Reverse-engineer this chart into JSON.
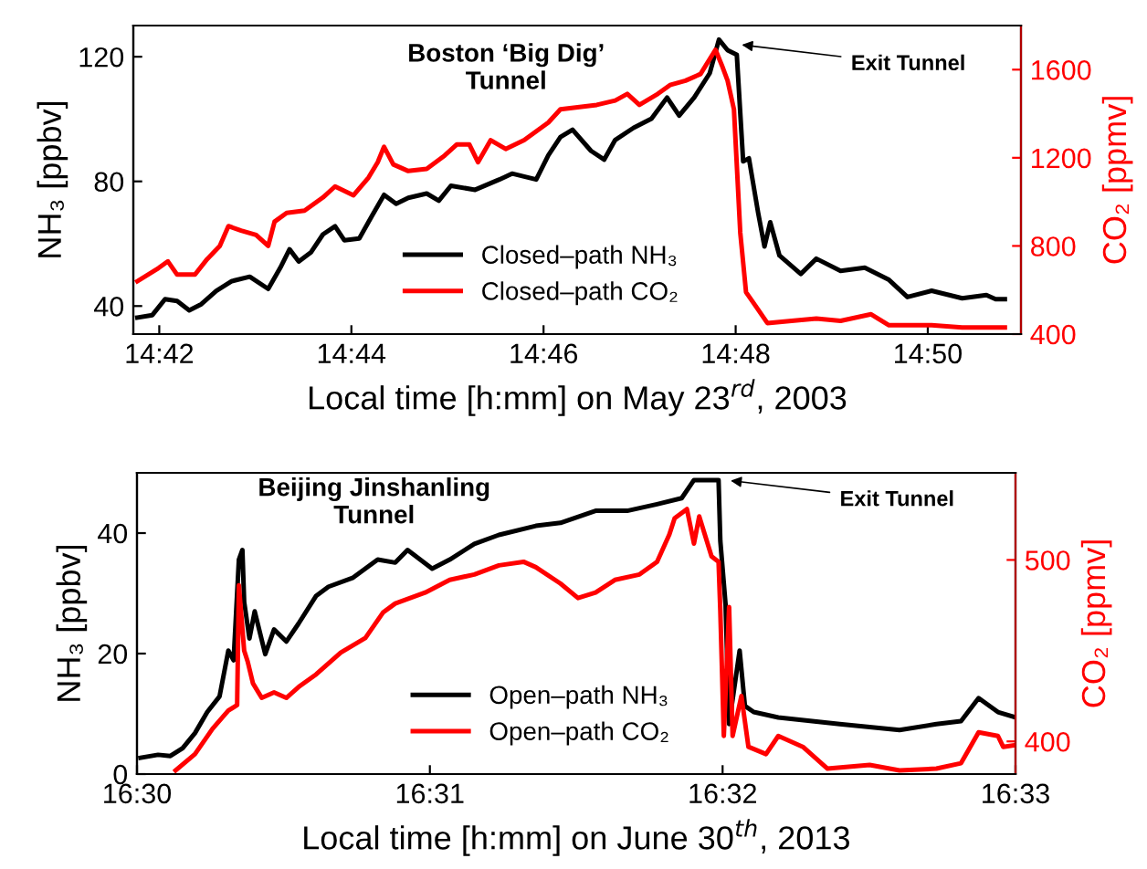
{
  "chart_data": [
    {
      "type": "line",
      "xlabel": "Local time [h:mm] on May 23$^{rd}$, 2003",
      "ylabel": "NH₃ [ppbv]",
      "y2label": "CO₂ [ppmv]",
      "xlim": [
        14.6955,
        14.8495
      ],
      "xticks": [
        {
          "value": 14.7,
          "label": "14:42"
        },
        {
          "value": 14.73333,
          "label": "14:44"
        },
        {
          "value": 14.76667,
          "label": "14:46"
        },
        {
          "value": 14.8,
          "label": "14:48"
        },
        {
          "value": 14.83333,
          "label": "14:50"
        }
      ],
      "ylim": [
        31,
        130
      ],
      "yticks": [
        40,
        80,
        120
      ],
      "y2lim": [
        400,
        1800
      ],
      "y2ticks": [
        400,
        800,
        1200,
        1600
      ],
      "legend": "bottom",
      "grid": false,
      "annotations": [
        "Boston ‘Big Dig’\nTunnel",
        {
          "text": "Exit Tunnel",
          "x": 14.8002,
          "y": 124
        }
      ],
      "series": [
        {
          "name": "Closed–path NH₃",
          "color": "#000000",
          "x": [
            14.6962,
            14.6988,
            14.701,
            14.7031,
            14.7052,
            14.7073,
            14.7099,
            14.7126,
            14.7157,
            14.7189,
            14.721,
            14.7226,
            14.7242,
            14.7263,
            14.7284,
            14.7305,
            14.7321,
            14.7347,
            14.7369,
            14.739,
            14.7411,
            14.7432,
            14.7464,
            14.7485,
            14.7506,
            14.7548,
            14.759,
            14.7612,
            14.7654,
            14.7675,
            14.7696,
            14.7717,
            14.7749,
            14.7772,
            14.7791,
            14.7823,
            14.7854,
            14.7881,
            14.7902,
            14.7928,
            14.7955,
            14.7971,
            14.7986,
            14.8002,
            14.8013,
            14.8023,
            14.8039,
            14.805,
            14.806,
            14.8076,
            14.8113,
            14.814,
            14.8182,
            14.8224,
            14.8266,
            14.8298,
            14.834,
            14.8393,
            14.8435,
            14.8451,
            14.8467
          ],
          "values": [
            36.3,
            37.1,
            42.2,
            41.6,
            38.6,
            40.6,
            44.9,
            48.0,
            49.4,
            45.5,
            52.3,
            58.2,
            54.3,
            57.2,
            63.0,
            65.6,
            61.1,
            61.7,
            68.9,
            75.7,
            72.8,
            74.7,
            76.1,
            73.8,
            78.6,
            77.3,
            80.6,
            82.5,
            80.6,
            88.4,
            94.2,
            96.6,
            89.8,
            87.0,
            93.3,
            97.2,
            100.1,
            106.9,
            101.1,
            106.9,
            114.7,
            125.5,
            122.1,
            120.6,
            86.4,
            87.4,
            69.9,
            59.1,
            66.9,
            56.2,
            50.3,
            55.2,
            51.3,
            52.3,
            48.4,
            42.9,
            44.9,
            42.5,
            43.5,
            42.2,
            42.2
          ]
        },
        {
          "name": "Closed–path CO₂",
          "color": "#ff0000",
          "axis": "y2",
          "x": [
            14.6962,
            14.6999,
            14.7015,
            14.7031,
            14.7062,
            14.7083,
            14.7105,
            14.712,
            14.7142,
            14.7168,
            14.7189,
            14.72,
            14.7221,
            14.7252,
            14.7284,
            14.7305,
            14.7337,
            14.7363,
            14.7379,
            14.739,
            14.7406,
            14.7432,
            14.7464,
            14.7495,
            14.7516,
            14.7538,
            14.7553,
            14.7575,
            14.7601,
            14.7633,
            14.7675,
            14.7696,
            14.7759,
            14.7791,
            14.7812,
            14.7833,
            14.7865,
            14.7886,
            14.7913,
            14.7939,
            14.7965,
            14.7976,
            14.7986,
            14.7997,
            14.8008,
            14.8018,
            14.8034,
            14.8055,
            14.8097,
            14.814,
            14.8182,
            14.8235,
            14.8266,
            14.834,
            14.8393,
            14.8467
          ],
          "values": [
            640,
            700,
            730,
            670,
            670,
            740,
            800,
            890,
            870,
            850,
            800,
            910,
            950,
            960,
            1020,
            1070,
            1030,
            1110,
            1180,
            1250,
            1170,
            1140,
            1150,
            1210,
            1260,
            1260,
            1180,
            1280,
            1240,
            1280,
            1360,
            1420,
            1440,
            1460,
            1490,
            1440,
            1490,
            1530,
            1550,
            1580,
            1690,
            1620,
            1550,
            1420,
            860,
            590,
            530,
            450,
            460,
            470,
            460,
            490,
            440,
            440,
            430,
            430
          ]
        }
      ]
    },
    {
      "type": "line",
      "xlabel": "Local time [h:mm] on June 30$^{th}$, 2013",
      "ylabel": "NH₃ [ppbv]",
      "y2label": "CO₂ [ppmv]",
      "xlim": [
        16.5,
        16.55
      ],
      "xticks": [
        {
          "value": 16.5,
          "label": "16:30"
        },
        {
          "value": 16.51667,
          "label": "16:31"
        },
        {
          "value": 16.53333,
          "label": "16:32"
        },
        {
          "value": 16.55,
          "label": "16:33"
        }
      ],
      "ylim": [
        0,
        50
      ],
      "yticks": [
        0,
        20,
        40
      ],
      "y2lim": [
        382,
        548
      ],
      "y2ticks": [
        400,
        500
      ],
      "legend": "bottom",
      "grid": false,
      "annotations": [
        "Beijing Jinshanling\nTunnel",
        {
          "text": "Exit Tunnel",
          "x": 16.5335,
          "y": 48.8
        }
      ],
      "series": [
        {
          "name": "Open–path NH₃",
          "color": "#000000",
          "x": [
            16.5002,
            16.5012,
            16.5019,
            16.5026,
            16.5033,
            16.504,
            16.5047,
            16.5052,
            16.5055,
            16.5058,
            16.506,
            16.5061,
            16.5064,
            16.5067,
            16.5073,
            16.5078,
            16.5085,
            16.5092,
            16.5102,
            16.5109,
            16.5123,
            16.5137,
            16.5147,
            16.5154,
            16.5168,
            16.5178,
            16.5192,
            16.5206,
            16.5227,
            16.5241,
            16.5261,
            16.5279,
            16.5296,
            16.531,
            16.5317,
            16.5331,
            16.5332,
            16.5335,
            16.5337,
            16.5343,
            16.5346,
            16.5351,
            16.5365,
            16.54,
            16.5434,
            16.5455,
            16.5469,
            16.5479,
            16.549,
            16.55
          ],
          "values": [
            2.7,
            3.2,
            3.0,
            4.3,
            6.8,
            10.3,
            12.9,
            20.5,
            18.9,
            35.6,
            37.2,
            28.6,
            22.5,
            27.0,
            19.9,
            24.0,
            22.0,
            25.0,
            29.6,
            31.1,
            32.6,
            35.6,
            35.1,
            37.2,
            34.1,
            35.6,
            38.2,
            39.7,
            41.2,
            41.7,
            43.7,
            43.7,
            44.8,
            45.8,
            48.8,
            48.8,
            38.7,
            28.1,
            8.3,
            20.5,
            11.3,
            10.3,
            9.4,
            8.3,
            7.3,
            8.3,
            8.8,
            12.6,
            10.3,
            9.4
          ]
        },
        {
          "name": "Open–path CO₂",
          "color": "#ff0000",
          "axis": "y2",
          "x": [
            16.5022,
            16.5033,
            16.5043,
            16.5052,
            16.5057,
            16.5058,
            16.5061,
            16.5063,
            16.5066,
            16.5071,
            16.5078,
            16.5085,
            16.5092,
            16.5102,
            16.5116,
            16.513,
            16.514,
            16.5147,
            16.5164,
            16.5178,
            16.5192,
            16.5206,
            16.522,
            16.5227,
            16.5241,
            16.5251,
            16.5261,
            16.5272,
            16.5286,
            16.5296,
            16.5303,
            16.5306,
            16.5313,
            16.5317,
            16.532,
            16.5327,
            16.5331,
            16.5332,
            16.5334,
            16.5337,
            16.5339,
            16.5344,
            16.5348,
            16.5358,
            16.5365,
            16.5379,
            16.5393,
            16.5417,
            16.5434,
            16.5455,
            16.5469,
            16.5479,
            16.549,
            16.5493,
            16.55
          ],
          "values": [
            384,
            393,
            407,
            417,
            420,
            486,
            450,
            444,
            432,
            424,
            427,
            424,
            430,
            437,
            449,
            457,
            471,
            476,
            482,
            489,
            492,
            497,
            499,
            496,
            487,
            479,
            482,
            489,
            492,
            499,
            514,
            523,
            528,
            509,
            524,
            502,
            499,
            472,
            403,
            474,
            403,
            425,
            397,
            393,
            403,
            397,
            385,
            387,
            384,
            385,
            388,
            405,
            403,
            397,
            398
          ]
        }
      ]
    }
  ]
}
